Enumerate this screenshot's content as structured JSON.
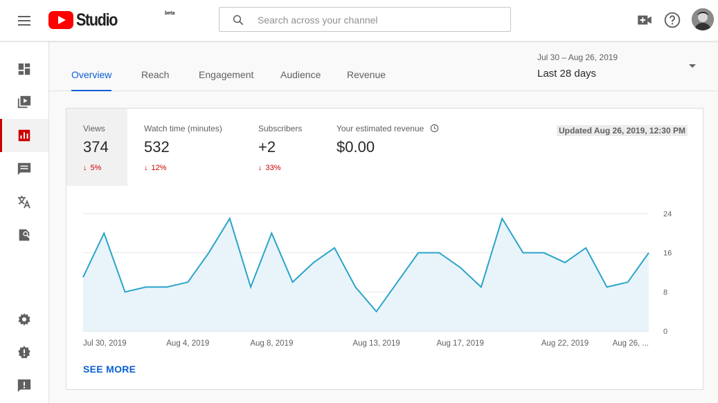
{
  "header": {
    "logo_text": "Studio",
    "logo_badge": "beta",
    "search_placeholder": "Search across your channel",
    "icons": [
      "menu-icon",
      "create-video-icon",
      "help-icon",
      "avatar"
    ]
  },
  "sidebar": {
    "items": [
      {
        "name": "dashboard",
        "icon": "dashboard-icon"
      },
      {
        "name": "videos",
        "icon": "video-library-icon"
      },
      {
        "name": "analytics",
        "icon": "analytics-icon",
        "active": true
      },
      {
        "name": "comments",
        "icon": "comments-icon"
      },
      {
        "name": "subtitles",
        "icon": "translate-icon"
      },
      {
        "name": "copyright",
        "icon": "copyright-search-icon"
      },
      {
        "name": "settings",
        "icon": "gear-icon"
      },
      {
        "name": "feedback",
        "icon": "alert-icon"
      },
      {
        "name": "send-feedback",
        "icon": "feedback-icon"
      }
    ]
  },
  "tabs": [
    {
      "label": "Overview",
      "active": true
    },
    {
      "label": "Reach"
    },
    {
      "label": "Engagement"
    },
    {
      "label": "Audience"
    },
    {
      "label": "Revenue"
    }
  ],
  "date_range": {
    "range": "Jul 30 – Aug 26, 2019",
    "label": "Last 28 days"
  },
  "metrics": [
    {
      "label": "Views",
      "value": "374",
      "change": "5%",
      "direction": "down"
    },
    {
      "label": "Watch time (minutes)",
      "value": "532",
      "change": "12%",
      "direction": "down"
    },
    {
      "label": "Subscribers",
      "value": "+2",
      "change": "33%",
      "direction": "down"
    },
    {
      "label": "Your estimated revenue",
      "value": "$0.00",
      "change": "",
      "icon": "clock-icon"
    }
  ],
  "updated": "Updated Aug 26, 2019, 12:30 PM",
  "see_more": "SEE MORE",
  "colors": {
    "accent": "#065fd4",
    "brand_red": "#ff0000",
    "negative": "#cc0000",
    "line": "#2ba3c9",
    "fill": "#e8f4fa"
  },
  "chart_data": {
    "type": "area",
    "x": [
      "Jul 30, 2019",
      "Jul 31, 2019",
      "Aug 1, 2019",
      "Aug 2, 2019",
      "Aug 3, 2019",
      "Aug 4, 2019",
      "Aug 5, 2019",
      "Aug 6, 2019",
      "Aug 7, 2019",
      "Aug 8, 2019",
      "Aug 9, 2019",
      "Aug 10, 2019",
      "Aug 11, 2019",
      "Aug 12, 2019",
      "Aug 13, 2019",
      "Aug 14, 2019",
      "Aug 15, 2019",
      "Aug 16, 2019",
      "Aug 17, 2019",
      "Aug 18, 2019",
      "Aug 19, 2019",
      "Aug 20, 2019",
      "Aug 21, 2019",
      "Aug 22, 2019",
      "Aug 23, 2019",
      "Aug 24, 2019",
      "Aug 25, 2019",
      "Aug 26, 2019"
    ],
    "series": [
      {
        "values": [
          11,
          20,
          8,
          9,
          9,
          10,
          16,
          23,
          9,
          20,
          10,
          14,
          17,
          9,
          4,
          10,
          16,
          16,
          13,
          9,
          23,
          16,
          16,
          14,
          17,
          9,
          10,
          16
        ]
      }
    ],
    "xtick_labels": [
      "Jul 30, 2019",
      "Aug 4, 2019",
      "Aug 8, 2019",
      "Aug 13, 2019",
      "Aug 17, 2019",
      "Aug 22, 2019",
      "Aug 26, ..."
    ],
    "xtick_indices": [
      0,
      5,
      9,
      14,
      18,
      23,
      27
    ],
    "yticks": [
      "24",
      "16",
      "8",
      "0"
    ],
    "ylim": [
      0,
      24
    ],
    "grid": true,
    "yaxis_side": "right"
  }
}
